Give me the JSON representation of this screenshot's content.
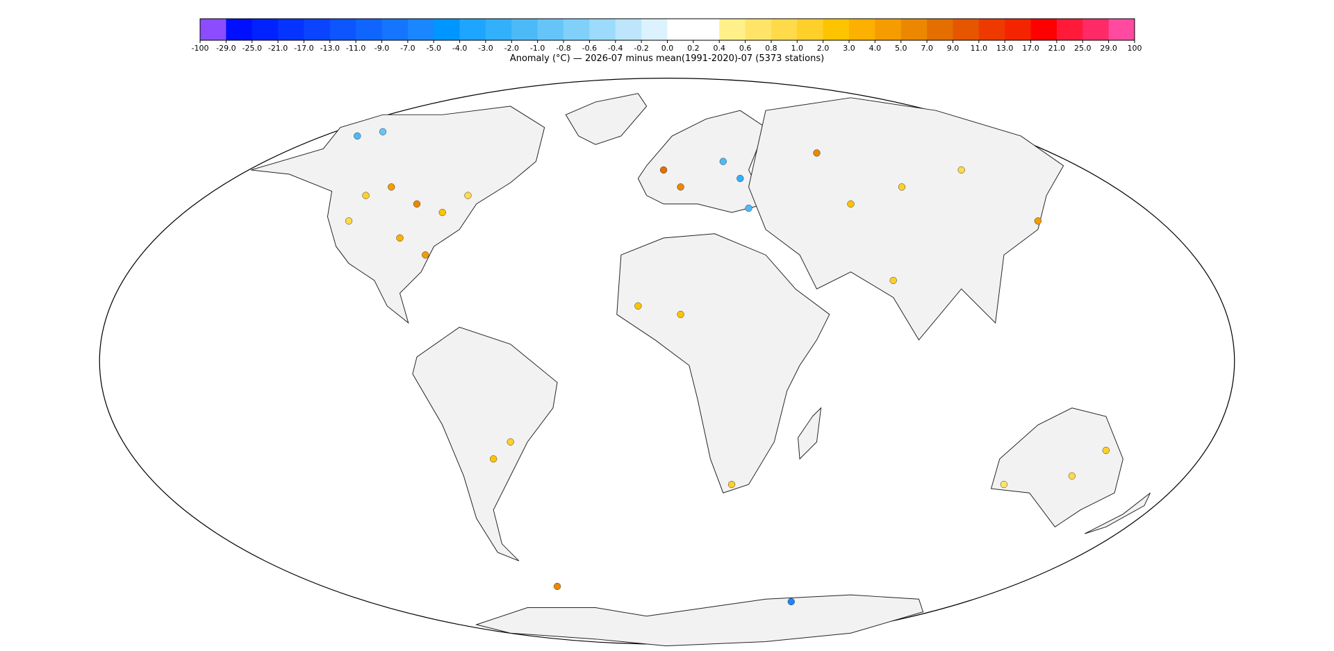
{
  "colorbar": {
    "ticks": [
      -100,
      {
        "value": -29,
        "label": "-29.0"
      },
      {
        "value": -25,
        "label": "-25.0"
      },
      {
        "value": -21,
        "label": "-21.0"
      },
      {
        "value": -17,
        "label": "-17.0"
      },
      {
        "value": -13,
        "label": "-13.0"
      },
      {
        "value": -11,
        "label": "-11.0"
      },
      {
        "value": -9,
        "label": "-9.0"
      },
      {
        "value": -7,
        "label": "-7.0"
      },
      {
        "value": -5,
        "label": "-5.0"
      },
      {
        "value": -4,
        "label": "-4.0"
      },
      {
        "value": -3,
        "label": "-3.0"
      },
      {
        "value": -2,
        "label": "-2.0"
      },
      {
        "value": -1,
        "label": "-1.0"
      },
      -0.8,
      -0.6,
      -0.4,
      -0.2,
      {
        "value": 0,
        "label": "0.0"
      },
      0.2,
      0.4,
      0.6,
      0.8,
      {
        "value": 1,
        "label": "1.0"
      },
      {
        "value": 2,
        "label": "2.0"
      },
      {
        "value": 3,
        "label": "3.0"
      },
      {
        "value": 4,
        "label": "4.0"
      },
      {
        "value": 5,
        "label": "5.0"
      },
      {
        "value": 7,
        "label": "7.0"
      },
      {
        "value": 9,
        "label": "9.0"
      },
      {
        "value": 11,
        "label": "11.0"
      },
      {
        "value": 13,
        "label": "13.0"
      },
      {
        "value": 17,
        "label": "17.0"
      },
      {
        "value": 21,
        "label": "21.0"
      },
      {
        "value": 25,
        "label": "25.0"
      },
      {
        "value": 29,
        "label": "29.0"
      },
      100
    ],
    "colors": [
      "#8b4dff",
      "#0010ff",
      "#0022ff",
      "#0533ff",
      "#0a44ff",
      "#0d55ff",
      "#1065ff",
      "#1575ff",
      "#1a86ff",
      "#0096ff",
      "#1ea5ff",
      "#33b0fa",
      "#4dbaf8",
      "#66c5f8",
      "#80d0fa",
      "#9cdbfb",
      "#bde6fc",
      "#dcf2fe",
      "#ffffff",
      "#ffffff",
      "#fff08a",
      "#ffe468",
      "#ffda4a",
      "#ffcf2a",
      "#ffc400",
      "#fcb000",
      "#f59c00",
      "#ec8800",
      "#e46f00",
      "#e65500",
      "#ee3a00",
      "#f52400",
      "#ff0000",
      "#ff1a3a",
      "#ff2a66",
      "#ff4aa0"
    ],
    "caption": "Anomaly (°C) — 2026-07 minus mean(1991-2020)-07 (5373 stations)"
  }
}
